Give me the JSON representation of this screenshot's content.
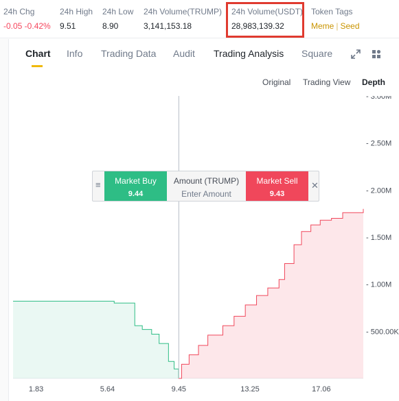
{
  "stats": [
    {
      "label": "24h Chg",
      "value": "-0.05 -0.42%",
      "negative": true
    },
    {
      "label": "24h High",
      "value": "9.51",
      "negative": false
    },
    {
      "label": "24h Low",
      "value": "8.90",
      "negative": false
    },
    {
      "label": "24h Volume(TRUMP)",
      "value": "3,141,153.18",
      "negative": false
    },
    {
      "label": "24h Volume(USDT)",
      "value": "28,983,139.32",
      "negative": false
    }
  ],
  "token_tags": {
    "label": "Token Tags",
    "tags": [
      "Meme",
      "Seed"
    ]
  },
  "tabs": [
    "Chart",
    "Info",
    "Trading Data",
    "Audit",
    "Trading Analysis",
    "Square"
  ],
  "view_modes": [
    "Original",
    "Trading View",
    "Depth"
  ],
  "order_panel": {
    "buy_label": "Market Buy",
    "buy_price": "9.44",
    "amount_label": "Amount (TRUMP)",
    "amount_placeholder": "Enter Amount",
    "sell_label": "Market Sell",
    "sell_price": "9.43"
  },
  "colors": {
    "buy": "#2ebd85",
    "sell": "#f0475b",
    "accent": "#f0b90b",
    "highlight": "#e03a2f"
  },
  "icons": [
    "expand-icon",
    "grid-layout-icon",
    "drag-handle-icon",
    "close-icon"
  ],
  "chart_data": {
    "type": "area",
    "title": "",
    "xlabel": "",
    "ylabel": "",
    "x_ticks": [
      "1.83",
      "5.64",
      "9.45",
      "13.25",
      "17.06"
    ],
    "y_ticks": [
      "500.00K",
      "1.00M",
      "1.50M",
      "2.00M",
      "2.50M",
      "3.00M"
    ],
    "ylim": [
      0,
      3000000
    ],
    "xlim": [
      0.6,
      19.3
    ],
    "mid_price": 9.45,
    "series": [
      {
        "name": "bids",
        "side": "buy",
        "x": [
          0.6,
          3.0,
          6.0,
          7.1,
          7.1,
          7.5,
          8.0,
          8.4,
          8.9,
          9.2,
          9.44
        ],
        "y": [
          820000,
          820000,
          800000,
          770000,
          560000,
          520000,
          470000,
          370000,
          180000,
          100000,
          0
        ]
      },
      {
        "name": "asks",
        "side": "sell",
        "x": [
          9.43,
          9.6,
          10.0,
          10.5,
          11.0,
          11.8,
          12.4,
          13.0,
          13.6,
          14.2,
          14.8,
          15.1,
          15.6,
          16.0,
          16.5,
          17.0,
          17.6,
          18.2,
          19.3
        ],
        "y": [
          0,
          150000,
          250000,
          350000,
          460000,
          560000,
          660000,
          780000,
          880000,
          960000,
          1050000,
          1220000,
          1420000,
          1560000,
          1630000,
          1680000,
          1700000,
          1760000,
          1800000
        ]
      }
    ]
  }
}
